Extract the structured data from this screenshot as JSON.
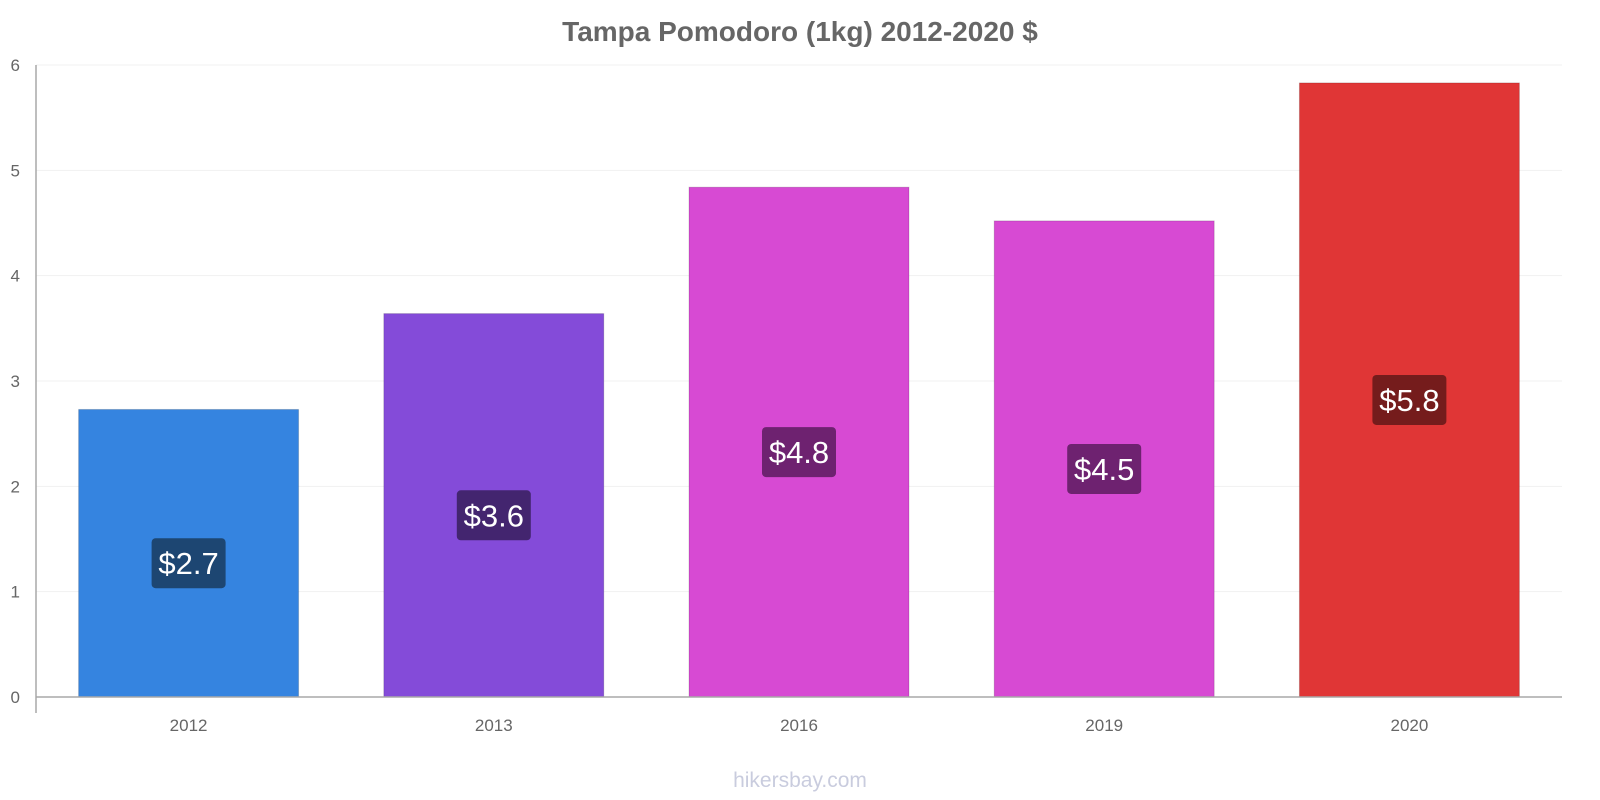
{
  "chart_data": {
    "type": "bar",
    "title": "Tampa Pomodoro (1kg) 2012-2020 $",
    "xlabel": "",
    "ylabel": "",
    "ylim": [
      0,
      6
    ],
    "yticks": [
      "0",
      "1",
      "2",
      "3",
      "4",
      "5",
      "6"
    ],
    "categories": [
      "2012",
      "2013",
      "2016",
      "2019",
      "2020"
    ],
    "values": [
      2.73,
      3.64,
      4.84,
      4.52,
      5.83
    ],
    "labels": [
      "$2.7",
      "$3.6",
      "$4.8",
      "$4.5",
      "$5.8"
    ],
    "bar_colors": [
      "#3584e0",
      "#844bd9",
      "#d74ad3",
      "#d74ad3",
      "#e03636"
    ],
    "label_bg_colors": [
      "#1d4672",
      "#43256f",
      "#6e2270",
      "#6e2270",
      "#751c1c"
    ],
    "grid": true,
    "legend": "none"
  },
  "watermark": "hikersbay.com"
}
